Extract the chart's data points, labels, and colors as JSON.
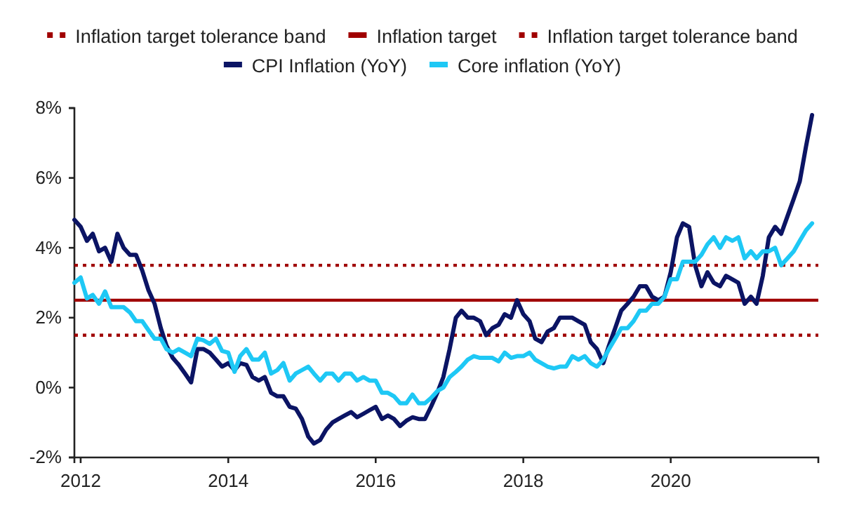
{
  "chart_data": {
    "type": "line",
    "x": [
      "2011-12",
      "2012-01",
      "2012-02",
      "2012-03",
      "2012-04",
      "2012-05",
      "2012-06",
      "2012-07",
      "2012-08",
      "2012-09",
      "2012-10",
      "2012-11",
      "2012-12",
      "2013-01",
      "2013-02",
      "2013-03",
      "2013-04",
      "2013-05",
      "2013-06",
      "2013-07",
      "2013-08",
      "2013-09",
      "2013-10",
      "2013-11",
      "2013-12",
      "2014-01",
      "2014-02",
      "2014-03",
      "2014-04",
      "2014-05",
      "2014-06",
      "2014-07",
      "2014-08",
      "2014-09",
      "2014-10",
      "2014-11",
      "2014-12",
      "2015-01",
      "2015-02",
      "2015-03",
      "2015-04",
      "2015-05",
      "2015-06",
      "2015-07",
      "2015-08",
      "2015-09",
      "2015-10",
      "2015-11",
      "2015-12",
      "2016-01",
      "2016-02",
      "2016-03",
      "2016-04",
      "2016-05",
      "2016-06",
      "2016-07",
      "2016-08",
      "2016-09",
      "2016-10",
      "2016-11",
      "2016-12",
      "2017-01",
      "2017-02",
      "2017-03",
      "2017-04",
      "2017-05",
      "2017-06",
      "2017-07",
      "2017-08",
      "2017-09",
      "2017-10",
      "2017-11",
      "2017-12",
      "2018-01",
      "2018-02",
      "2018-03",
      "2018-04",
      "2018-05",
      "2018-06",
      "2018-07",
      "2018-08",
      "2018-09",
      "2018-10",
      "2018-11",
      "2018-12",
      "2019-01",
      "2019-02",
      "2019-03",
      "2019-04",
      "2019-05",
      "2019-06",
      "2019-07",
      "2019-08",
      "2019-09",
      "2019-10",
      "2019-11",
      "2019-12",
      "2020-01",
      "2020-02",
      "2020-03",
      "2020-04",
      "2020-05",
      "2020-06",
      "2020-07",
      "2020-08",
      "2020-09",
      "2020-10",
      "2020-11",
      "2020-12",
      "2021-01",
      "2021-02",
      "2021-03",
      "2021-04",
      "2021-05",
      "2021-06",
      "2021-07",
      "2021-08",
      "2021-09",
      "2021-10",
      "2021-11",
      "2021-12"
    ],
    "series": [
      {
        "name": "CPI Inflation (YoY)",
        "color": "#0b1464",
        "values": [
          4.8,
          4.6,
          4.2,
          4.4,
          3.9,
          4.0,
          3.6,
          4.4,
          4.0,
          3.8,
          3.8,
          3.35,
          2.8,
          2.4,
          1.7,
          1.2,
          0.85,
          0.65,
          0.4,
          0.15,
          1.1,
          1.1,
          1.0,
          0.8,
          0.6,
          0.7,
          0.5,
          0.7,
          0.65,
          0.3,
          0.2,
          0.3,
          -0.15,
          -0.25,
          -0.25,
          -0.55,
          -0.6,
          -0.9,
          -1.4,
          -1.6,
          -1.5,
          -1.2,
          -1.0,
          -0.9,
          -0.8,
          -0.7,
          -0.85,
          -0.75,
          -0.65,
          -0.55,
          -0.9,
          -0.8,
          -0.9,
          -1.1,
          -0.95,
          -0.85,
          -0.9,
          -0.9,
          -0.55,
          -0.15,
          0.3,
          1.1,
          2.0,
          2.2,
          2.0,
          2.0,
          1.9,
          1.5,
          1.7,
          1.8,
          2.1,
          2.0,
          2.5,
          2.1,
          1.9,
          1.4,
          1.3,
          1.6,
          1.7,
          2.0,
          2.0,
          2.0,
          1.9,
          1.8,
          1.3,
          1.1,
          0.7,
          1.2,
          1.7,
          2.2,
          2.4,
          2.6,
          2.9,
          2.9,
          2.6,
          2.5,
          2.6,
          3.3,
          4.3,
          4.7,
          4.6,
          3.5,
          2.9,
          3.3,
          3.0,
          2.9,
          3.2,
          3.1,
          3.0,
          2.4,
          2.6,
          2.4,
          3.2,
          4.3,
          4.6,
          4.4,
          4.9,
          5.4,
          5.9,
          6.9,
          7.8
        ]
      },
      {
        "name": "Core inflation (YoY)",
        "color": "#1ec8f5",
        "values": [
          3.0,
          3.15,
          2.55,
          2.65,
          2.4,
          2.75,
          2.3,
          2.3,
          2.3,
          2.15,
          1.9,
          1.9,
          1.65,
          1.4,
          1.4,
          1.1,
          1.0,
          1.1,
          1.0,
          0.9,
          1.4,
          1.35,
          1.25,
          1.4,
          1.05,
          1.0,
          0.45,
          0.9,
          1.1,
          0.8,
          0.8,
          1.0,
          0.4,
          0.5,
          0.7,
          0.2,
          0.4,
          0.5,
          0.6,
          0.4,
          0.2,
          0.4,
          0.4,
          0.2,
          0.4,
          0.4,
          0.2,
          0.3,
          0.2,
          0.2,
          -0.15,
          -0.15,
          -0.25,
          -0.45,
          -0.45,
          -0.2,
          -0.45,
          -0.45,
          -0.3,
          -0.1,
          0.0,
          0.3,
          0.45,
          0.6,
          0.8,
          0.9,
          0.85,
          0.85,
          0.85,
          0.75,
          1.0,
          0.85,
          0.9,
          0.9,
          1.0,
          0.8,
          0.7,
          0.6,
          0.55,
          0.6,
          0.6,
          0.9,
          0.8,
          0.9,
          0.7,
          0.6,
          0.8,
          1.1,
          1.4,
          1.7,
          1.7,
          1.9,
          2.2,
          2.2,
          2.4,
          2.4,
          2.6,
          3.1,
          3.1,
          3.6,
          3.6,
          3.6,
          3.8,
          4.1,
          4.3,
          4.0,
          4.3,
          4.2,
          4.3,
          3.7,
          3.9,
          3.7,
          3.9,
          3.9,
          4.0,
          3.5,
          3.7,
          3.9,
          4.2,
          4.5,
          4.7
        ]
      }
    ],
    "xlim": [
      "2011-12",
      "2022-01"
    ],
    "xticks": [
      "2012",
      "2014",
      "2016",
      "2018",
      "2020"
    ],
    "ylim": [
      -2,
      8
    ],
    "yticks": [
      {
        "value": -2,
        "label": "-2%"
      },
      {
        "value": 0,
        "label": "0%"
      },
      {
        "value": 2,
        "label": "2%"
      },
      {
        "value": 4,
        "label": "4%"
      },
      {
        "value": 6,
        "label": "6%"
      },
      {
        "value": 8,
        "label": "8%"
      }
    ],
    "ref_lines": [
      {
        "axis": "y",
        "value": 3.5,
        "label": "Inflation target tolerance band",
        "color": "#a00000",
        "line_style": "dotted"
      },
      {
        "axis": "y",
        "value": 2.5,
        "label": "Inflation target",
        "color": "#a00000",
        "line_style": "solid"
      },
      {
        "axis": "y",
        "value": 1.5,
        "label": "Inflation target tolerance band",
        "color": "#a00000",
        "line_style": "dotted"
      }
    ],
    "legend": "top",
    "line_style": "solid",
    "marker": "none"
  }
}
